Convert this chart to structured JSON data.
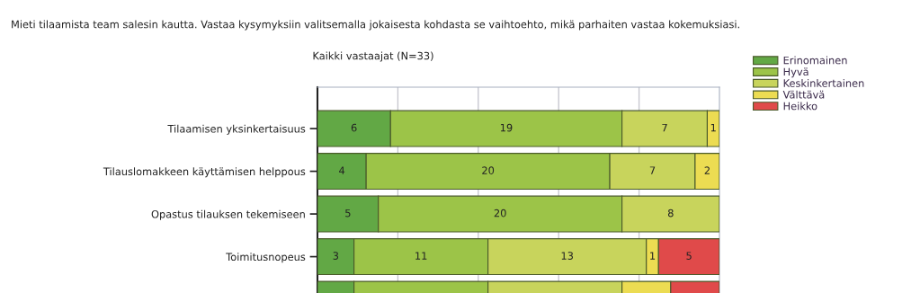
{
  "chart_data": {
    "type": "bar",
    "orientation": "horizontal",
    "stacked": true,
    "title": "Mieti tilaamista team salesin kautta. Vastaa kysymyksiin valitsemalla jokaisesta kohdasta se vaihtoehto, mikä parhaiten vastaa kokemuksiasi.",
    "subtitle": "Kaikki vastaajat (N=33)",
    "categories": [
      "Tilaamisen yksinkertaisuus",
      "Tilauslomakkeen käyttämisen helppous",
      "Opastus tilauksen tekemiseen",
      "Toimitusnopeus",
      null
    ],
    "series": [
      {
        "name": "Erinomainen",
        "color": "#62a845",
        "values": [
          6,
          4,
          5,
          3,
          3
        ],
        "value_labels": [
          "6",
          "4",
          "5",
          "3",
          null
        ]
      },
      {
        "name": "Hyvä",
        "color": "#9cc448",
        "values": [
          19,
          20,
          20,
          11,
          11
        ],
        "value_labels": [
          "19",
          "20",
          "20",
          "11",
          null
        ]
      },
      {
        "name": "Keskinkertainen",
        "color": "#c8d45c",
        "values": [
          7,
          7,
          8,
          13,
          11
        ],
        "value_labels": [
          "7",
          "7",
          "8",
          "13",
          null
        ]
      },
      {
        "name": "Välttävä",
        "color": "#ecdc52",
        "values": [
          1,
          2,
          null,
          1,
          4
        ],
        "value_labels": [
          "1",
          "2",
          null,
          "1",
          null
        ]
      },
      {
        "name": "Heikko",
        "color": "#e04a4a",
        "values": [
          null,
          null,
          null,
          5,
          4
        ],
        "value_labels": [
          null,
          null,
          null,
          "5",
          null
        ]
      }
    ],
    "xlim": [
      0,
      33
    ],
    "xticks": [
      {
        "value": 6.6,
        "label": null
      },
      {
        "value": 13.2,
        "label": null
      },
      {
        "value": 19.8,
        "label": null
      },
      {
        "value": 26.4,
        "label": null
      }
    ],
    "tick_labels": "y",
    "grid": "x",
    "legend": "top right"
  }
}
